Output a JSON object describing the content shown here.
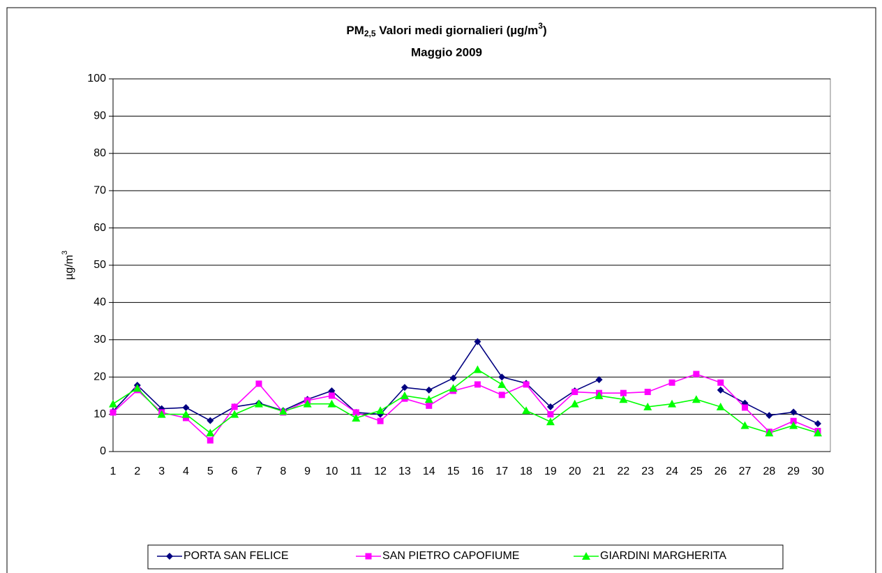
{
  "chart_data": {
    "type": "line",
    "title": [
      "PM",
      "2,5",
      " Valori medi giornalieri (µg/m",
      "3",
      ")"
    ],
    "subtitle": "Maggio 2009",
    "y_label": [
      "µg/m",
      "3"
    ],
    "categories": [
      1,
      2,
      3,
      4,
      5,
      6,
      7,
      8,
      9,
      10,
      11,
      12,
      13,
      14,
      15,
      16,
      17,
      18,
      19,
      20,
      21,
      22,
      23,
      24,
      25,
      26,
      27,
      28,
      29,
      30
    ],
    "series": [
      {
        "name": "PORTA SAN FELICE",
        "color": "#000080",
        "marker": "diamond",
        "values": [
          10.8,
          17.8,
          11.5,
          11.8,
          8.3,
          12,
          13,
          11,
          14,
          16.3,
          10.5,
          10,
          17.2,
          16.5,
          19.7,
          29.5,
          20,
          18.3,
          12,
          16.3,
          19.3,
          null,
          null,
          null,
          null,
          16.5,
          13,
          9.7,
          10.6,
          7.5
        ]
      },
      {
        "name": "SAN PIETRO CAPOFIUME",
        "color": "#ff00ff",
        "marker": "square",
        "values": [
          10.5,
          16.5,
          10.5,
          9,
          3,
          12,
          18.2,
          10.5,
          13.7,
          15,
          10.5,
          8.2,
          14.2,
          12.3,
          16.3,
          18,
          15.2,
          18,
          10,
          16,
          15.7,
          15.7,
          16,
          18.5,
          20.8,
          18.5,
          11.8,
          5.3,
          8.2,
          5.5
        ]
      },
      {
        "name": "GIARDINI MARGHERITA",
        "color": "#00ff00",
        "marker": "triangle",
        "values": [
          12.8,
          17,
          10,
          10,
          5,
          10,
          12.8,
          10.8,
          12.8,
          12.8,
          9,
          11,
          15,
          14,
          17,
          22,
          18,
          11,
          8,
          12.8,
          15,
          14,
          12,
          12.8,
          14,
          12,
          7,
          5,
          7,
          5
        ]
      }
    ],
    "ylim": [
      0,
      100
    ],
    "yticks": [
      0,
      10,
      20,
      30,
      40,
      50,
      60,
      70,
      80,
      90,
      100
    ],
    "grid": true,
    "legend": "bottom"
  }
}
